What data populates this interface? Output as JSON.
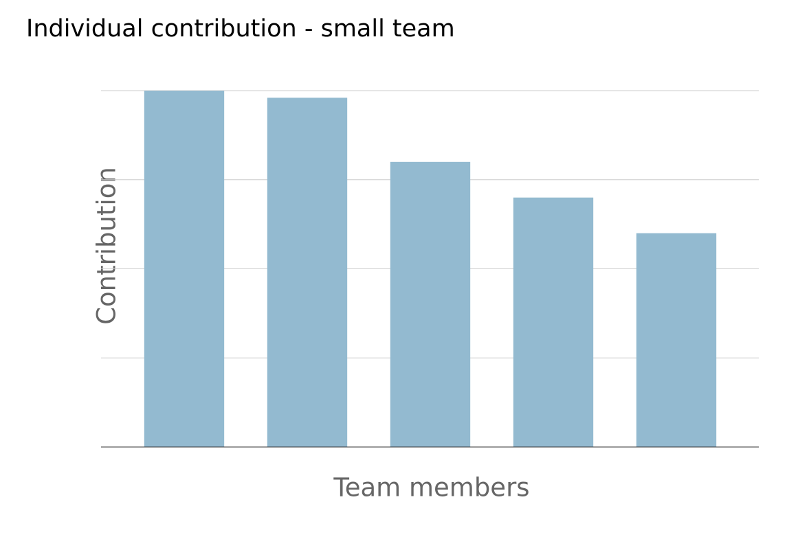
{
  "chart_data": {
    "type": "bar",
    "title": "Individual contribution - small team",
    "x_label": "Team members",
    "y_label": "Contribution",
    "categories": [
      null,
      null,
      null,
      null,
      null
    ],
    "values": [
      100,
      98,
      80,
      70,
      60
    ],
    "color": "#93bad0",
    "ylim": [
      0,
      100
    ],
    "yticks": [
      0,
      25,
      50,
      75,
      100
    ],
    "grid": true
  }
}
